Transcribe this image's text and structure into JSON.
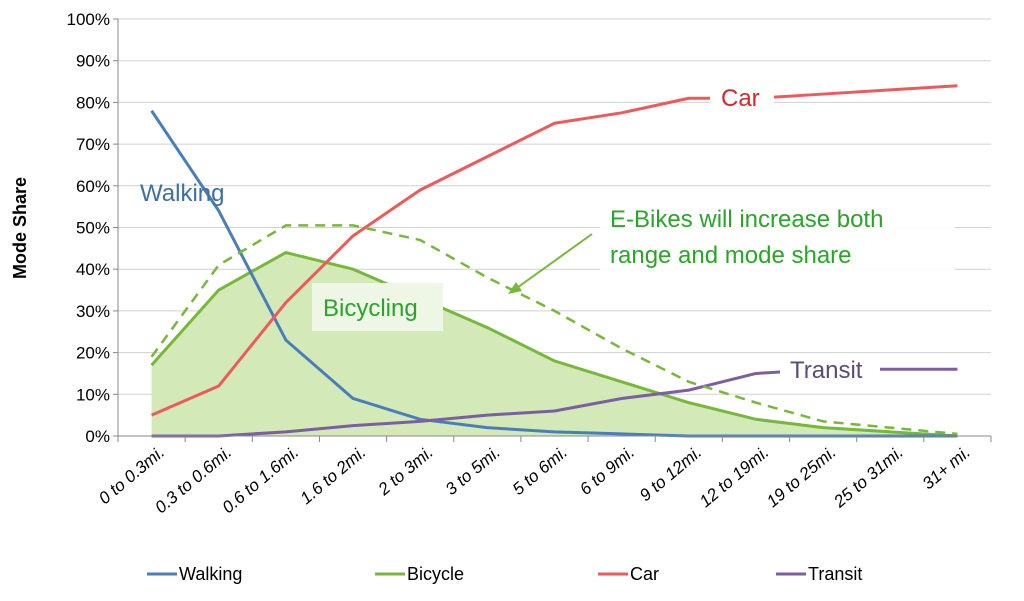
{
  "chart_data": {
    "type": "line",
    "ylabel": "Mode Share",
    "xlabel": "",
    "ylim": [
      0,
      100
    ],
    "ytick_labels": [
      "0%",
      "10%",
      "20%",
      "30%",
      "40%",
      "50%",
      "60%",
      "70%",
      "80%",
      "90%",
      "100%"
    ],
    "grid": true,
    "legend_placement": "bottom",
    "categories": [
      "0 to 0.3mi.",
      "0.3 to 0.6mi.",
      "0.6 to 1.6mi.",
      "1.6 to 2mi.",
      "2 to 3mi.",
      "3 to 5mi.",
      "5 to 6mi.",
      "6 to 9mi.",
      "9 to 12mi.",
      "12 to 19mi.",
      "19 to 25mi.",
      "25 to 31mi.",
      "31+ mi."
    ],
    "series": [
      {
        "name": "Walking",
        "color": "#4a7ebb",
        "values": [
          78,
          54,
          23,
          9,
          4,
          2,
          1,
          0.5,
          0,
          0,
          0,
          0,
          0
        ]
      },
      {
        "name": "Bicycle",
        "color": "#77b83a",
        "area_fill": "#d3eab8",
        "values": [
          17,
          35,
          44,
          40,
          33,
          26,
          18,
          13,
          8,
          4,
          2,
          1,
          0
        ]
      },
      {
        "name": "Car",
        "color": "#ee5a5a",
        "values": [
          5,
          12,
          32,
          48,
          59,
          67,
          75,
          77.5,
          81,
          81,
          82,
          83,
          84
        ]
      },
      {
        "name": "Transit",
        "color": "#7b5fa0",
        "values": [
          0,
          0,
          1,
          2.5,
          3.5,
          5,
          6,
          9,
          11,
          15,
          16,
          16,
          16
        ]
      }
    ],
    "projected_series": {
      "style": "dashed",
      "color": "#77b83a",
      "values": [
        19,
        41,
        50.5,
        50.5,
        47,
        38,
        30,
        21,
        13,
        8,
        3.5,
        2,
        0.5
      ]
    },
    "annotations": {
      "walking": "Walking",
      "bicycling": "Bicycling",
      "car": "Car",
      "transit": "Transit",
      "ebike_line1": "E-Bikes will increase both",
      "ebike_line2": "range and mode share"
    },
    "annotation_colors": {
      "walking": "#3f6ea8",
      "bicycling": "#2aa52a",
      "car": "#d7262b",
      "transit": "#5c4a78",
      "ebike": "#2aa52a"
    }
  }
}
